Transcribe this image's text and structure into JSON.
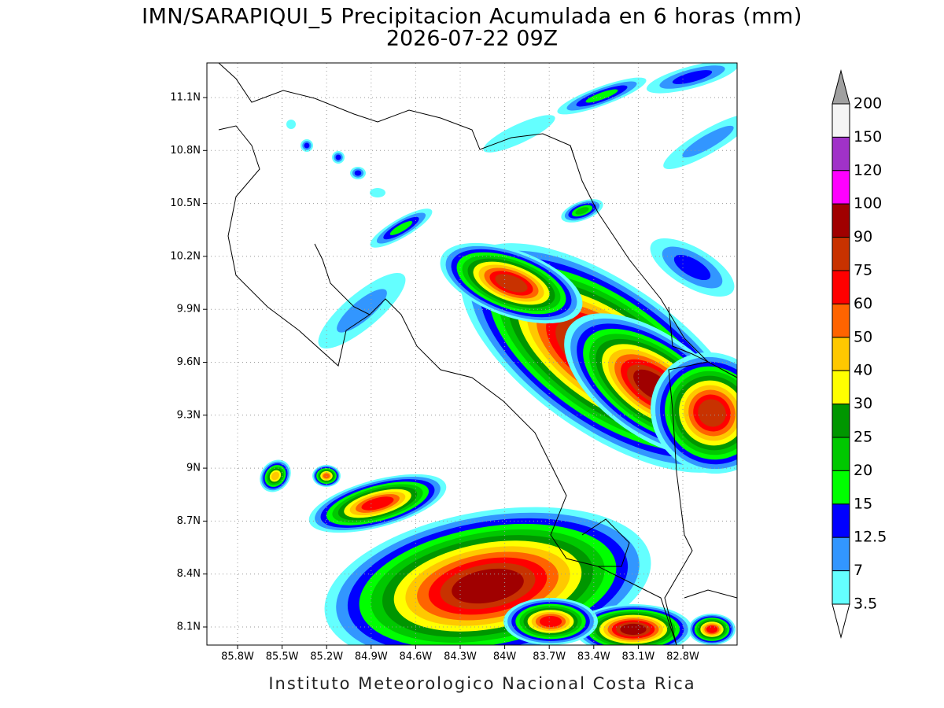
{
  "header": {
    "title": "IMN/SARAPIQUI_5 Precipitacion Acumulada en 6 horas (mm)",
    "subtitle": "2026-07-22 09Z"
  },
  "map": {
    "lon_labels": [
      "85.8W",
      "85.5W",
      "85.2W",
      "84.9W",
      "84.6W",
      "84.3W",
      "84W",
      "83.7W",
      "83.4W",
      "83.1W",
      "82.8W"
    ],
    "lat_labels": [
      "11.1N",
      "10.8N",
      "10.5N",
      "10.2N",
      "9.9N",
      "9.6N",
      "9.3N",
      "9N",
      "8.7N",
      "8.4N",
      "8.1N"
    ]
  },
  "legend": {
    "labels": [
      "200",
      "150",
      "120",
      "100",
      "90",
      "75",
      "60",
      "50",
      "40",
      "30",
      "25",
      "20",
      "15",
      "12.5",
      "7",
      "3.5"
    ],
    "colors": [
      "#f5f5f5",
      "#a032c8",
      "#ff00ff",
      "#a00000",
      "#c83200",
      "#ff0000",
      "#ff6400",
      "#ffc800",
      "#ffff00",
      "#009600",
      "#00c800",
      "#00ff00",
      "#0000ff",
      "#3296ff",
      "#64ffff"
    ],
    "over_color": "#a0a0a0",
    "under_color": "#ffffff"
  },
  "footer": "Instituto Meteorologico Nacional Costa Rica"
}
